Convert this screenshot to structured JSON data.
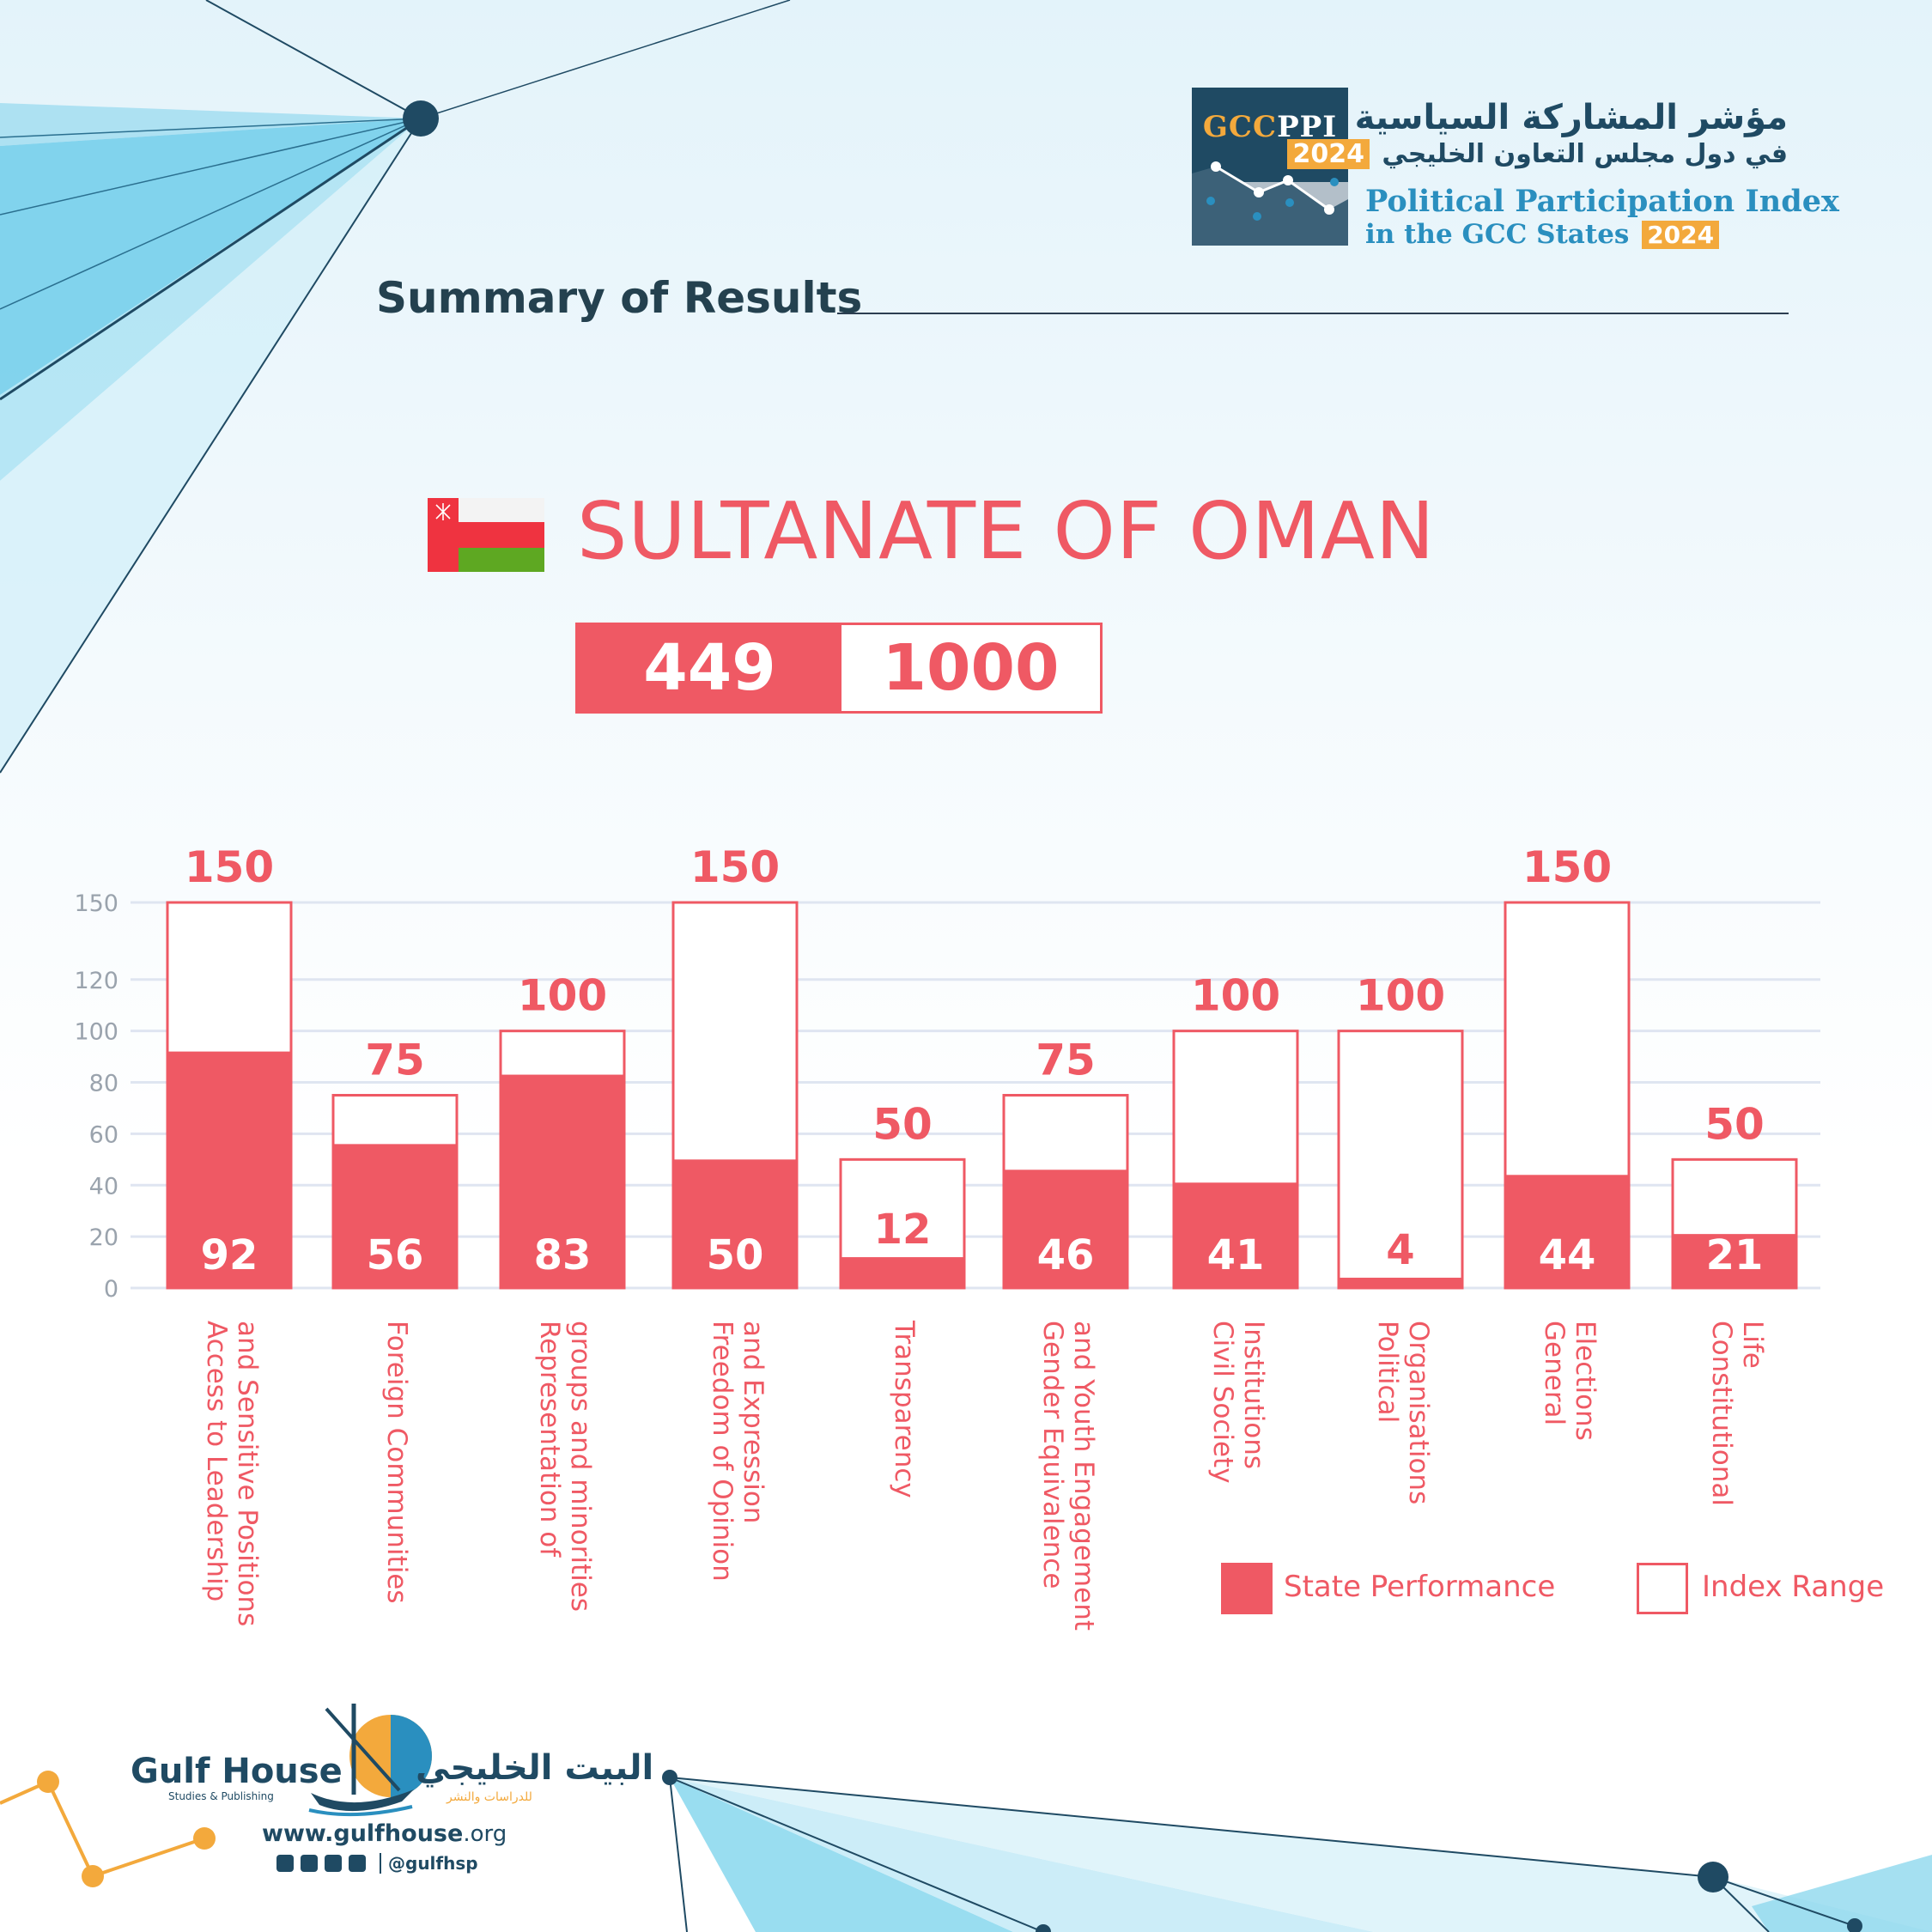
{
  "header": {
    "arabic_title": "مؤشر المشاركة السياسية",
    "arabic_subtitle": "في دول مجلس التعاون الخليجي",
    "year": "2024",
    "logo_gcc": "GCC",
    "logo_ppi": "PPI",
    "english_title_line1": "Political Participation Index",
    "english_title_line2": "in the GCC States"
  },
  "section_title": "Summary of Results",
  "country": {
    "name": "SULTANATE OF OMAN",
    "score": "449",
    "max_score": "1000",
    "flag_icon": "oman-flag-icon"
  },
  "colors": {
    "accent": "#ef5964",
    "navy": "#1f4a63",
    "orange": "#f3a93c",
    "blue": "#2a8fbf",
    "grid": "#dfe5f1",
    "axis_text": "#9aa3ad"
  },
  "chart_data": {
    "type": "bar",
    "categories": [
      "Access to Leadership\nand Sensitive Positions",
      "Foreign Communities",
      "Representation of\ngroups and minorities",
      "Freedom of Opinion\nand Expression",
      "Transparency",
      "Gender Equivalence\nand Youth Engagement",
      "Civil Society\nInstitutions",
      "Political\nOrganisations",
      "General\nElections",
      "Constitutional\nLife"
    ],
    "series": [
      {
        "name": "State Performance",
        "values": [
          92,
          56,
          83,
          50,
          12,
          46,
          41,
          4,
          44,
          21
        ]
      },
      {
        "name": "Index Range",
        "values": [
          150,
          75,
          100,
          150,
          50,
          75,
          100,
          100,
          150,
          50
        ]
      }
    ],
    "y_ticks": [
      0,
      20,
      40,
      60,
      80,
      100,
      120,
      150
    ],
    "ylim": [
      0,
      150
    ],
    "grid": true,
    "legend_position": "bottom-right"
  },
  "legend": {
    "performance_label": "State Performance",
    "range_label": "Index Range"
  },
  "footer": {
    "org_en": "Gulf House",
    "org_en_sub": "Studies & Publishing",
    "org_ar": "البيت الخليجي",
    "org_ar_sub": "للدراسات والنشر",
    "url_prefix": "www.",
    "url_domain": "gulfhouse",
    "url_suffix": ".org",
    "social_handle": "@gulfhsp",
    "social_icons": [
      "instagram-icon",
      "youtube-icon",
      "twitter-icon",
      "facebook-icon"
    ]
  }
}
